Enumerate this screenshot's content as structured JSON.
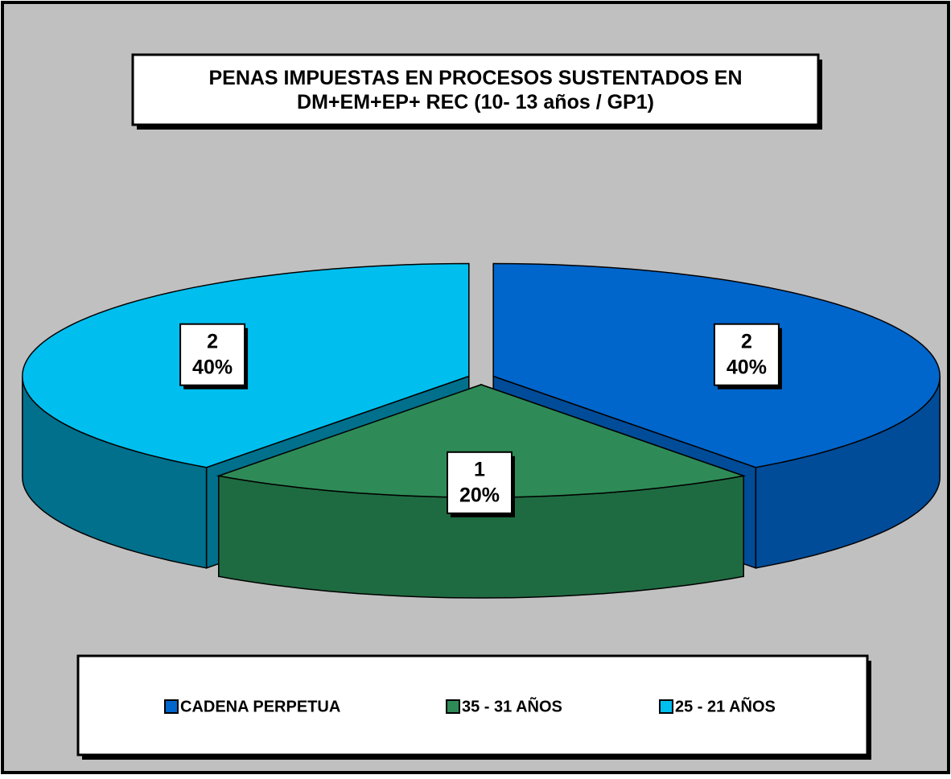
{
  "chart_data": {
    "type": "pie3d",
    "title": "PENAS IMPUESTAS EN PROCESOS SUSTENTADOS EN DM+EM+EP+ REC (10- 13 años / GP1)",
    "categories": [
      "CADENA PERPETUA",
      "35 - 31 AÑOS",
      "25 - 21 AÑOS"
    ],
    "values": [
      2,
      1,
      2
    ],
    "percentages": [
      40,
      20,
      40
    ],
    "percentage_labels": [
      "40%",
      "20%",
      "40%"
    ],
    "colors": [
      "#0066cc",
      "#2e8b57",
      "#00bfef"
    ],
    "side_colors": [
      "#004c99",
      "#1f6b41",
      "#00708c"
    ],
    "legend": "bottom"
  }
}
